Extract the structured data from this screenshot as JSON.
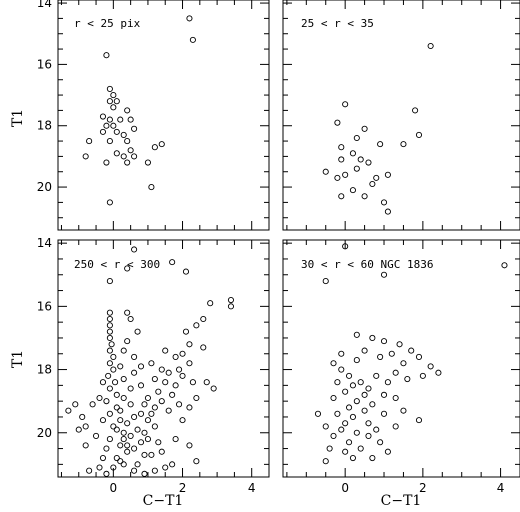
{
  "chart_data": [
    {
      "type": "scatter",
      "panel_label": "r < 25 pix",
      "xlim": [
        -1.6,
        4.5
      ],
      "ylim": [
        21.4,
        13.9
      ],
      "x_ticks": [
        0,
        2,
        4
      ],
      "y_ticks": [
        14,
        16,
        18,
        20
      ],
      "xlabel": "",
      "ylabel": "T1",
      "points": [
        [
          2.2,
          14.5
        ],
        [
          2.3,
          15.2
        ],
        [
          -0.2,
          15.7
        ],
        [
          -0.1,
          16.8
        ],
        [
          0,
          17.0
        ],
        [
          -0.1,
          17.2
        ],
        [
          0.1,
          17.2
        ],
        [
          0,
          17.4
        ],
        [
          -0.3,
          17.7
        ],
        [
          0.4,
          17.5
        ],
        [
          -0.1,
          17.8
        ],
        [
          0.2,
          17.8
        ],
        [
          -0.2,
          18.0
        ],
        [
          0,
          18.0
        ],
        [
          0.5,
          17.8
        ],
        [
          0.6,
          18.1
        ],
        [
          -0.3,
          18.2
        ],
        [
          0.1,
          18.2
        ],
        [
          0.3,
          18.3
        ],
        [
          -0.7,
          18.5
        ],
        [
          -0.1,
          18.5
        ],
        [
          0.4,
          18.5
        ],
        [
          1.4,
          18.6
        ],
        [
          0.5,
          18.8
        ],
        [
          1.2,
          18.7
        ],
        [
          0.1,
          18.9
        ],
        [
          -0.8,
          19.0
        ],
        [
          0.3,
          19.0
        ],
        [
          0.6,
          19.0
        ],
        [
          -0.2,
          19.2
        ],
        [
          0.4,
          19.2
        ],
        [
          1.0,
          19.2
        ],
        [
          1.1,
          20.0
        ],
        [
          -0.1,
          20.5
        ]
      ]
    },
    {
      "type": "scatter",
      "panel_label": "25 < r < 35",
      "xlim": [
        -1.6,
        4.5
      ],
      "ylim": [
        21.4,
        13.9
      ],
      "x_ticks": [
        0,
        2,
        4
      ],
      "y_ticks": [
        14,
        16,
        18,
        20
      ],
      "xlabel": "",
      "ylabel": "",
      "points": [
        [
          2.2,
          15.4
        ],
        [
          1.8,
          17.5
        ],
        [
          1.9,
          18.3
        ],
        [
          1.5,
          18.6
        ],
        [
          0,
          17.3
        ],
        [
          -0.2,
          17.9
        ],
        [
          0.5,
          18.1
        ],
        [
          0.3,
          18.4
        ],
        [
          -0.1,
          18.7
        ],
        [
          0.2,
          18.9
        ],
        [
          0.4,
          19.1
        ],
        [
          0.9,
          18.6
        ],
        [
          -0.1,
          19.1
        ],
        [
          0.6,
          19.2
        ],
        [
          -0.5,
          19.5
        ],
        [
          0,
          19.6
        ],
        [
          0.3,
          19.4
        ],
        [
          0.8,
          19.7
        ],
        [
          0.7,
          19.9
        ],
        [
          1.1,
          19.6
        ],
        [
          0.2,
          20.1
        ],
        [
          -0.1,
          20.3
        ],
        [
          0.5,
          20.3
        ],
        [
          1.0,
          20.5
        ],
        [
          1.1,
          20.8
        ],
        [
          -0.2,
          19.7
        ]
      ]
    },
    {
      "type": "scatter",
      "panel_label": "250 < r < 300",
      "xlim": [
        -1.6,
        4.5
      ],
      "ylim": [
        21.4,
        13.9
      ],
      "x_ticks": [
        0,
        2,
        4
      ],
      "y_ticks": [
        14,
        16,
        18,
        20
      ],
      "xlabel": "C−T1",
      "ylabel": "T1",
      "points": [
        [
          0.6,
          14.2
        ],
        [
          1.7,
          14.6
        ],
        [
          2.1,
          14.9
        ],
        [
          0.4,
          14.8
        ],
        [
          -0.1,
          15.2
        ],
        [
          3.4,
          15.8
        ],
        [
          3.4,
          16.0
        ],
        [
          2.8,
          15.9
        ],
        [
          2.6,
          16.4
        ],
        [
          2.4,
          16.6
        ],
        [
          2.1,
          16.8
        ],
        [
          2.2,
          17.2
        ],
        [
          2.0,
          17.5
        ],
        [
          0.4,
          16.2
        ],
        [
          0.5,
          16.4
        ],
        [
          0.7,
          16.8
        ],
        [
          0.3,
          17.4
        ],
        [
          0.6,
          17.6
        ],
        [
          0.8,
          17.9
        ],
        [
          1.1,
          17.8
        ],
        [
          1.4,
          18.0
        ],
        [
          1.6,
          18.1
        ],
        [
          1.9,
          18.0
        ],
        [
          1.2,
          18.3
        ],
        [
          1.5,
          18.4
        ],
        [
          1.8,
          18.5
        ],
        [
          1.3,
          18.7
        ],
        [
          1.7,
          18.8
        ],
        [
          1.0,
          18.9
        ],
        [
          1.4,
          19.0
        ],
        [
          1.9,
          19.1
        ],
        [
          1.2,
          19.2
        ],
        [
          1.6,
          19.3
        ],
        [
          2.2,
          19.2
        ],
        [
          2.4,
          18.9
        ],
        [
          2.7,
          18.4
        ],
        [
          2.9,
          18.6
        ],
        [
          2.2,
          17.8
        ],
        [
          2.0,
          18.2
        ],
        [
          1.8,
          17.6
        ],
        [
          1.5,
          17.4
        ],
        [
          2.6,
          17.3
        ],
        [
          2.3,
          18.4
        ],
        [
          2.0,
          19.6
        ],
        [
          1.8,
          20.2
        ],
        [
          2.2,
          20.4
        ],
        [
          2.4,
          20.9
        ],
        [
          1.7,
          21.0
        ],
        [
          1.1,
          20.7
        ],
        [
          1.3,
          20.3
        ],
        [
          0.9,
          20.0
        ],
        [
          1.0,
          19.6
        ],
        [
          0.8,
          19.4
        ],
        [
          -1.3,
          19.3
        ],
        [
          -1.1,
          19.1
        ],
        [
          -0.9,
          19.5
        ],
        [
          -0.8,
          19.8
        ],
        [
          -0.6,
          19.1
        ],
        [
          -0.5,
          20.1
        ],
        [
          -0.8,
          20.4
        ],
        [
          -0.3,
          20.8
        ],
        [
          -0.4,
          21.1
        ],
        [
          -0.7,
          21.2
        ],
        [
          -1.0,
          19.9
        ],
        [
          -0.2,
          20.5
        ],
        [
          -0.1,
          16.2
        ],
        [
          -0.1,
          16.4
        ],
        [
          -0.1,
          16.6
        ],
        [
          -0.1,
          16.8
        ],
        [
          -0.1,
          17.0
        ],
        [
          -0.05,
          17.2
        ],
        [
          -0.1,
          17.4
        ],
        [
          0,
          17.6
        ],
        [
          -0.1,
          17.8
        ],
        [
          0,
          18.0
        ],
        [
          -0.15,
          18.2
        ],
        [
          0.05,
          18.4
        ],
        [
          -0.1,
          18.6
        ],
        [
          0.1,
          18.8
        ],
        [
          -0.2,
          19.0
        ],
        [
          0.1,
          19.2
        ],
        [
          -0.1,
          19.4
        ],
        [
          0.2,
          19.6
        ],
        [
          0,
          19.8
        ],
        [
          0.3,
          20.0
        ],
        [
          -0.1,
          20.2
        ],
        [
          0.2,
          20.4
        ],
        [
          0.4,
          20.6
        ],
        [
          0.1,
          20.8
        ],
        [
          0.3,
          21.0
        ],
        [
          0.6,
          21.2
        ],
        [
          -0.2,
          21.3
        ],
        [
          0.9,
          21.3
        ],
        [
          0.3,
          18.9
        ],
        [
          0.5,
          19.1
        ],
        [
          0.2,
          19.3
        ],
        [
          0.6,
          19.5
        ],
        [
          0.4,
          19.7
        ],
        [
          0.7,
          19.9
        ],
        [
          0.5,
          20.1
        ],
        [
          0.8,
          20.3
        ],
        [
          0.6,
          20.5
        ],
        [
          0.9,
          20.7
        ],
        [
          0.3,
          20.2
        ],
        [
          0.1,
          19.9
        ],
        [
          0.4,
          20.4
        ],
        [
          0.7,
          21.0
        ],
        [
          0.2,
          20.9
        ],
        [
          0.5,
          18.6
        ],
        [
          0.3,
          18.3
        ],
        [
          0.6,
          18.1
        ],
        [
          0.8,
          18.5
        ],
        [
          0.9,
          19.1
        ],
        [
          1.1,
          19.4
        ],
        [
          1.2,
          19.8
        ],
        [
          1.0,
          20.2
        ],
        [
          1.4,
          20.6
        ],
        [
          1.5,
          21.1
        ],
        [
          1.2,
          21.2
        ],
        [
          0.0,
          21.1
        ],
        [
          -0.3,
          19.6
        ],
        [
          -0.4,
          18.9
        ],
        [
          -0.3,
          18.4
        ],
        [
          0.2,
          17.9
        ],
        [
          0.4,
          17.1
        ]
      ]
    },
    {
      "type": "scatter",
      "panel_label": "30 < r < 60 NGC 1836",
      "xlim": [
        -1.6,
        4.5
      ],
      "ylim": [
        21.4,
        13.9
      ],
      "x_ticks": [
        0,
        2,
        4
      ],
      "y_ticks": [
        14,
        16,
        18,
        20
      ],
      "xlabel": "C−T1",
      "ylabel": "",
      "points": [
        [
          0,
          14.1
        ],
        [
          -0.5,
          15.2
        ],
        [
          1.0,
          15.0
        ],
        [
          4.1,
          14.7
        ],
        [
          0.3,
          16.9
        ],
        [
          0.7,
          17.0
        ],
        [
          1.0,
          17.1
        ],
        [
          1.4,
          17.2
        ],
        [
          1.7,
          17.4
        ],
        [
          1.2,
          17.5
        ],
        [
          0.5,
          17.4
        ],
        [
          0.9,
          17.6
        ],
        [
          1.5,
          17.8
        ],
        [
          1.9,
          17.6
        ],
        [
          2.2,
          17.9
        ],
        [
          2.4,
          18.1
        ],
        [
          2.0,
          18.2
        ],
        [
          1.6,
          18.3
        ],
        [
          1.3,
          18.1
        ],
        [
          1.1,
          18.4
        ],
        [
          0.8,
          18.2
        ],
        [
          0.6,
          18.6
        ],
        [
          1.0,
          18.8
        ],
        [
          1.3,
          18.9
        ],
        [
          0.7,
          19.1
        ],
        [
          0.5,
          19.3
        ],
        [
          1.0,
          19.4
        ],
        [
          1.5,
          19.3
        ],
        [
          1.9,
          19.6
        ],
        [
          1.3,
          19.8
        ],
        [
          0.8,
          19.9
        ],
        [
          -0.3,
          17.8
        ],
        [
          -0.1,
          18.0
        ],
        [
          0.1,
          18.2
        ],
        [
          -0.2,
          18.4
        ],
        [
          0.2,
          18.5
        ],
        [
          0,
          18.7
        ],
        [
          -0.3,
          18.9
        ],
        [
          0.3,
          19.0
        ],
        [
          0.1,
          19.2
        ],
        [
          -0.2,
          19.4
        ],
        [
          0.2,
          19.5
        ],
        [
          0,
          19.7
        ],
        [
          -0.1,
          19.9
        ],
        [
          0.3,
          20.0
        ],
        [
          -0.3,
          20.1
        ],
        [
          0.1,
          20.3
        ],
        [
          -0.4,
          20.5
        ],
        [
          0,
          20.6
        ],
        [
          -0.5,
          20.9
        ],
        [
          -0.7,
          19.4
        ],
        [
          -0.5,
          19.8
        ],
        [
          0.4,
          20.5
        ],
        [
          0.6,
          20.1
        ],
        [
          0.2,
          20.8
        ],
        [
          0.4,
          18.4
        ],
        [
          0.5,
          18.8
        ],
        [
          0.3,
          17.7
        ],
        [
          -0.1,
          17.5
        ],
        [
          0.6,
          19.7
        ],
        [
          0.9,
          20.3
        ],
        [
          1.1,
          20.6
        ],
        [
          0.7,
          20.8
        ]
      ]
    }
  ]
}
